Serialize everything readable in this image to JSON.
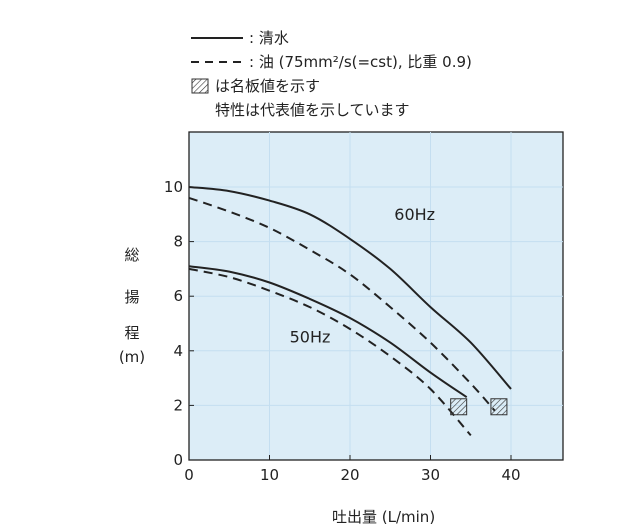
{
  "legend": {
    "solid_label": ": 清水",
    "dashed_label": ": 油 (75mm²/s(=cst), 比重 0.9)",
    "hatch_label": "は名板値を示す",
    "note": "特性は代表値を示しています"
  },
  "ylabel_chars": [
    "総",
    "揚",
    "程",
    "(m)"
  ],
  "colors": {
    "plot_bg": "#dcedf7",
    "grid": "#c4def0",
    "axis": "#222222",
    "curve": "#222222"
  },
  "chart_data": {
    "type": "line",
    "xlabel": "吐出量 (L/min)",
    "ylabel": "総揚程 (m)",
    "xlim": [
      0,
      45
    ],
    "ylim": [
      0,
      12
    ],
    "xticks": [
      0,
      10,
      20,
      30,
      40
    ],
    "yticks": [
      0,
      2,
      4,
      6,
      8,
      10
    ],
    "grid": true,
    "legend_position": "top",
    "series": [
      {
        "style": "solid",
        "x": [
          0,
          5,
          10,
          15,
          20,
          25,
          30,
          35,
          40
        ],
        "y": [
          10.0,
          9.85,
          9.5,
          9.0,
          8.1,
          7.0,
          5.6,
          4.3,
          2.6
        ]
      },
      {
        "style": "dashed",
        "x": [
          0,
          5,
          10,
          15,
          20,
          25,
          30,
          35,
          38
        ],
        "y": [
          9.6,
          9.1,
          8.5,
          7.7,
          6.8,
          5.6,
          4.3,
          2.8,
          1.8
        ]
      },
      {
        "style": "solid",
        "x": [
          0,
          5,
          10,
          15,
          20,
          25,
          30,
          34.5
        ],
        "y": [
          7.1,
          6.9,
          6.5,
          5.9,
          5.2,
          4.3,
          3.2,
          2.3
        ]
      },
      {
        "style": "dashed",
        "x": [
          0,
          5,
          10,
          15,
          20,
          25,
          30,
          35
        ],
        "y": [
          7.0,
          6.7,
          6.2,
          5.6,
          4.8,
          3.8,
          2.6,
          0.9
        ]
      }
    ],
    "curve_labels": [
      {
        "text": "60Hz",
        "x": 25.5,
        "y": 8.8
      },
      {
        "text": "50Hz",
        "x": 12.5,
        "y": 4.3
      }
    ],
    "rated_points": [
      {
        "x": 33.5,
        "y": 1.95
      },
      {
        "x": 38.5,
        "y": 1.95
      }
    ]
  }
}
